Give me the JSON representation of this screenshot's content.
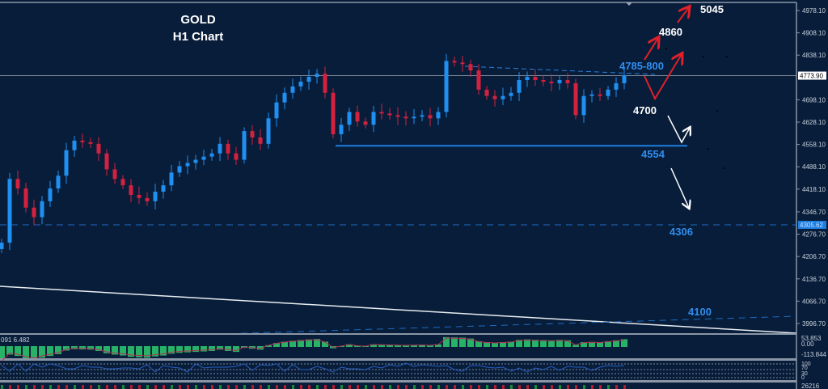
{
  "chart_data": {
    "type": "candlestick",
    "title": "GOLD",
    "subtitle": "H1 Chart",
    "ylim": [
      3960,
      5010
    ],
    "y_ticks": [
      "4978.10",
      "4908.10",
      "4838.10",
      "4698.10",
      "4628.10",
      "4558.10",
      "4488.10",
      "4418.10",
      "4346.70",
      "4276.70",
      "4206.70",
      "4136.70",
      "4066.70",
      "3996.70"
    ],
    "current_price": "4773.90",
    "marked_price": "4305.62",
    "closes": [
      4250,
      4450,
      4420,
      4360,
      4330,
      4380,
      4420,
      4460,
      4540,
      4570,
      4565,
      4560,
      4530,
      4480,
      4450,
      4430,
      4400,
      4390,
      4380,
      4410,
      4430,
      4470,
      4490,
      4500,
      4510,
      4520,
      4530,
      4560,
      4530,
      4510,
      4600,
      4580,
      4560,
      4640,
      4690,
      4720,
      4740,
      4755,
      4770,
      4780,
      4720,
      4590,
      4620,
      4660,
      4630,
      4620,
      4660,
      4655,
      4650,
      4645,
      4640,
      4645,
      4650,
      4640,
      4660,
      4820,
      4815,
      4810,
      4790,
      4730,
      4710,
      4700,
      4710,
      4720,
      4760,
      4770,
      4760,
      4755,
      4750,
      4760,
      4750,
      4650,
      4710,
      4715,
      4710,
      4730,
      4750,
      4775
    ],
    "colors": {
      "up": "#1f8ff0",
      "down": "#d3213f",
      "background": "#081d3a",
      "level": "#1e7fe0",
      "target_up": "#e0202a"
    },
    "levels": [
      {
        "label": "4785-800",
        "price": 4792,
        "style": "dashed-trendline"
      },
      {
        "label": "4554",
        "price": 4554,
        "style": "solid"
      },
      {
        "label": "4306",
        "price": 4306,
        "style": "dashed"
      },
      {
        "label": "4100",
        "price": 4100,
        "style": "dashed"
      }
    ],
    "scenario_labels": [
      {
        "label": "5045",
        "color": "#ffffff"
      },
      {
        "label": "4860",
        "color": "#ffffff"
      },
      {
        "label": "4700",
        "color": "#ffffff"
      }
    ],
    "macd": {
      "label": "091 6.482",
      "ticks": [
        "53.853",
        "0.00",
        "-113.844"
      ]
    },
    "rsi": {
      "ticks": [
        "100",
        "70",
        "30",
        "0"
      ]
    },
    "volume": {
      "tick": "26216"
    }
  }
}
